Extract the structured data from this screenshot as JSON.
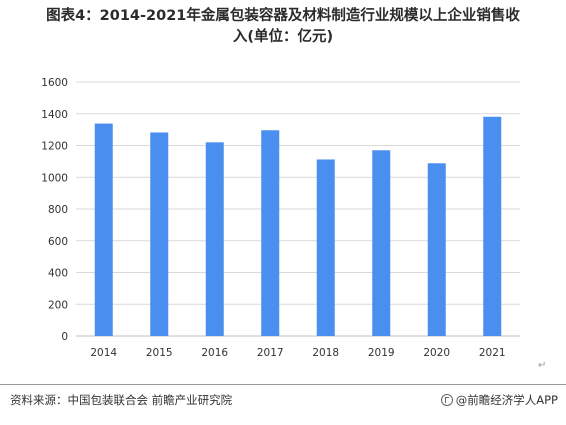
{
  "title": {
    "line1": "图表4：2014-2021年金属包装容器及材料制造行业规模以上企业销售收",
    "line2": "入(单位：亿元)"
  },
  "chart_data": {
    "type": "bar",
    "categories": [
      "2014",
      "2015",
      "2016",
      "2017",
      "2018",
      "2019",
      "2020",
      "2021"
    ],
    "values": [
      1338,
      1282,
      1220,
      1296,
      1112,
      1170,
      1088,
      1381
    ],
    "ylim": [
      0,
      1600
    ],
    "yticks": [
      0,
      200,
      400,
      600,
      800,
      1000,
      1200,
      1400,
      1600
    ],
    "grid": true,
    "bar_color": "#4a8ef0",
    "grid_color": "#d9d9d9"
  },
  "footer": {
    "source": "资料来源：中国包装联合会 前瞻产业研究院",
    "brand": "@前瞻经济学人APP"
  },
  "marks": {
    "return": "↵"
  }
}
